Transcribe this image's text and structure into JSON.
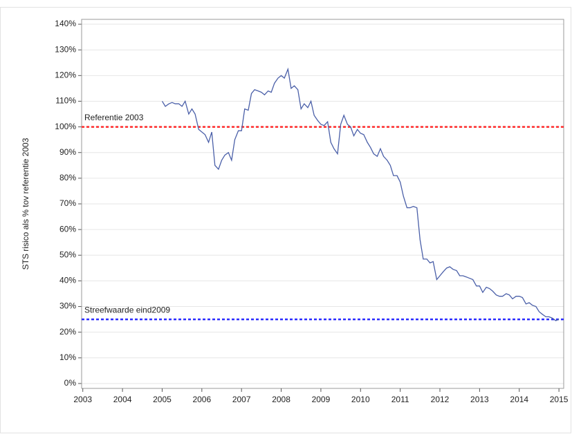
{
  "chart_data": {
    "type": "line",
    "y_label": "STS risico als % tov referentie 2003",
    "color": "#4a5fa8",
    "x": [
      2005.0,
      2005.08,
      2005.17,
      2005.25,
      2005.33,
      2005.42,
      2005.5,
      2005.58,
      2005.67,
      2005.75,
      2005.83,
      2005.92,
      2006.0,
      2006.08,
      2006.17,
      2006.25,
      2006.33,
      2006.42,
      2006.5,
      2006.58,
      2006.67,
      2006.75,
      2006.83,
      2006.92,
      2007.0,
      2007.08,
      2007.17,
      2007.25,
      2007.33,
      2007.42,
      2007.5,
      2007.58,
      2007.67,
      2007.75,
      2007.83,
      2007.92,
      2008.0,
      2008.08,
      2008.17,
      2008.25,
      2008.33,
      2008.42,
      2008.5,
      2008.58,
      2008.67,
      2008.75,
      2008.83,
      2008.92,
      2009.0,
      2009.08,
      2009.17,
      2009.25,
      2009.33,
      2009.42,
      2009.5,
      2009.58,
      2009.67,
      2009.75,
      2009.83,
      2009.92,
      2010.0,
      2010.08,
      2010.17,
      2010.25,
      2010.33,
      2010.42,
      2010.5,
      2010.58,
      2010.67,
      2010.75,
      2010.83,
      2010.92,
      2011.0,
      2011.08,
      2011.17,
      2011.25,
      2011.33,
      2011.42,
      2011.5,
      2011.58,
      2011.67,
      2011.75,
      2011.83,
      2011.92,
      2012.0,
      2012.08,
      2012.17,
      2012.25,
      2012.33,
      2012.42,
      2012.5,
      2012.58,
      2012.67,
      2012.75,
      2012.83,
      2012.92,
      2013.0,
      2013.08,
      2013.17,
      2013.25,
      2013.33,
      2013.42,
      2013.5,
      2013.58,
      2013.67,
      2013.75,
      2013.83,
      2013.92,
      2014.0,
      2014.08,
      2014.17,
      2014.25,
      2014.33,
      2014.42,
      2014.5,
      2014.58,
      2014.67,
      2014.75,
      2014.83,
      2014.92,
      2015.0
    ],
    "values": [
      110,
      108,
      109,
      109.5,
      109,
      109,
      108,
      110,
      105,
      107,
      105,
      99,
      98,
      97,
      94,
      98,
      85,
      83.5,
      87,
      89,
      90,
      87,
      95,
      98.5,
      98.5,
      107,
      106.5,
      113,
      114.5,
      114,
      113.5,
      112.5,
      114,
      113.5,
      117,
      119,
      120,
      119,
      122.5,
      115,
      116,
      114.5,
      107,
      109,
      107.5,
      110,
      104.5,
      102.5,
      101,
      100.5,
      102,
      94,
      91.5,
      89.5,
      101,
      104.5,
      101,
      100,
      96.5,
      99,
      97.5,
      97,
      94,
      92,
      89.5,
      88.5,
      91.5,
      88.5,
      87,
      85,
      81,
      81,
      78.5,
      73,
      68.5,
      68.5,
      69,
      68.5,
      56,
      48.5,
      48.5,
      47,
      47.5,
      40.5,
      42,
      43.5,
      45,
      45.5,
      44.5,
      44,
      42,
      42,
      41.5,
      41,
      40.5,
      38,
      38,
      35.5,
      37.5,
      37,
      36,
      34.5,
      34,
      34,
      35,
      34.5,
      33,
      34,
      34,
      33.5,
      31,
      31.5,
      30.5,
      30,
      28,
      27,
      26,
      26,
      25.5,
      24.5,
      25
    ],
    "reference_lines": [
      {
        "value": 100,
        "label": "Referentie 2003",
        "color": "#ff2a2a"
      },
      {
        "value": 25,
        "label": "Streefwaarde eind2009",
        "color": "#2a2aff"
      }
    ],
    "xlim": [
      2002.97,
      2015.12
    ],
    "xticks": [
      2003,
      2004,
      2005,
      2006,
      2007,
      2008,
      2009,
      2010,
      2011,
      2012,
      2013,
      2014,
      2015
    ],
    "ylim": [
      -1.9,
      141.9
    ],
    "yticks": [
      {
        "value": 0,
        "label": "0%"
      },
      {
        "value": 10,
        "label": "10%"
      },
      {
        "value": 20,
        "label": "20%"
      },
      {
        "value": 30,
        "label": "30%"
      },
      {
        "value": 40,
        "label": "40%"
      },
      {
        "value": 50,
        "label": "50%"
      },
      {
        "value": 60,
        "label": "60%"
      },
      {
        "value": 70,
        "label": "70%"
      },
      {
        "value": 80,
        "label": "80%"
      },
      {
        "value": 90,
        "label": "90%"
      },
      {
        "value": 100,
        "label": "100%"
      },
      {
        "value": 110,
        "label": "110%"
      },
      {
        "value": 120,
        "label": "120%"
      },
      {
        "value": 130,
        "label": "130%"
      },
      {
        "value": 140,
        "label": "140%"
      }
    ],
    "grid": true
  }
}
